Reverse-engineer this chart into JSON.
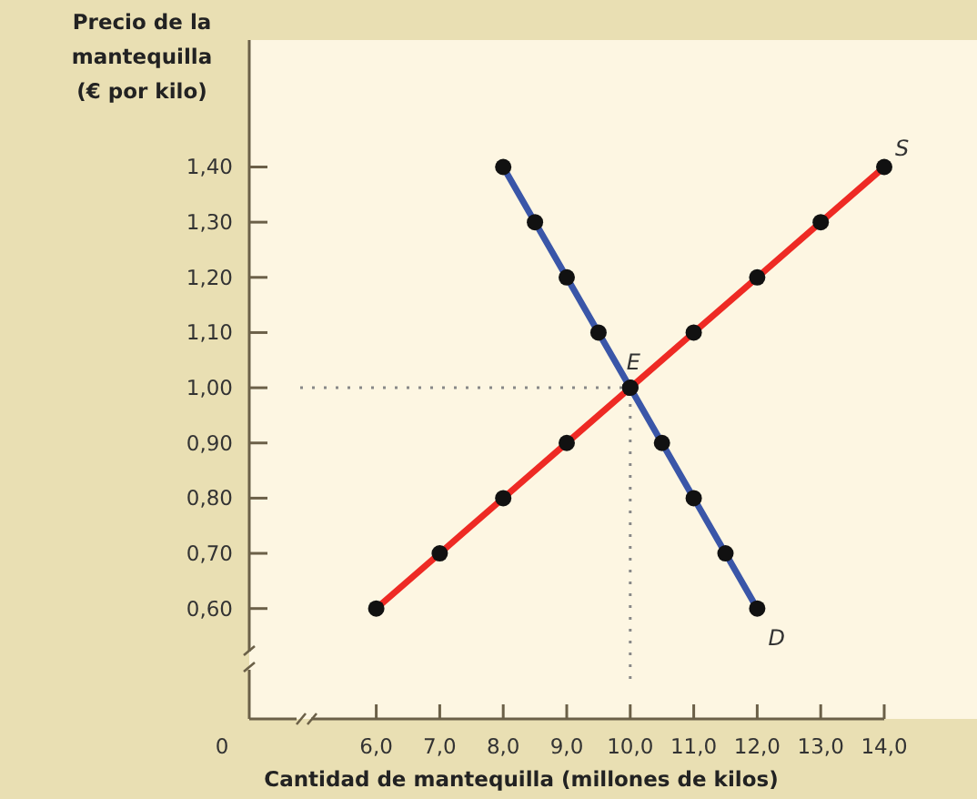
{
  "chart_data": {
    "type": "line",
    "ylabel": "Precio de la\nmantequilla\n(€ por kilo)",
    "xlabel": "Cantidad de mantequilla (millones de kilos)",
    "xlim": [
      4,
      14
    ],
    "ylim": [
      0.4,
      1.63
    ],
    "xticks": [
      {
        "value": 6,
        "label": "6,0"
      },
      {
        "value": 7,
        "label": "7,0"
      },
      {
        "value": 8,
        "label": "8,0"
      },
      {
        "value": 9,
        "label": "9,0"
      },
      {
        "value": 10,
        "label": "10,0"
      },
      {
        "value": 11,
        "label": "11,0"
      },
      {
        "value": 12,
        "label": "12,0"
      },
      {
        "value": 13,
        "label": "13,0"
      },
      {
        "value": 14,
        "label": "14,0"
      }
    ],
    "yticks": [
      {
        "value": 0.6,
        "label": "0,60"
      },
      {
        "value": 0.7,
        "label": "0,70"
      },
      {
        "value": 0.8,
        "label": "0,80"
      },
      {
        "value": 0.9,
        "label": "0,90"
      },
      {
        "value": 1.0,
        "label": "1,00"
      },
      {
        "value": 1.1,
        "label": "1,10"
      },
      {
        "value": 1.2,
        "label": "1,20"
      },
      {
        "value": 1.3,
        "label": "1,30"
      },
      {
        "value": 1.4,
        "label": "1,40"
      }
    ],
    "series": [
      {
        "name": "S",
        "color": "#ee2a24",
        "x": [
          6,
          7,
          8,
          9,
          10,
          11,
          12,
          13,
          14
        ],
        "values": [
          0.6,
          0.7,
          0.8,
          0.9,
          1.0,
          1.1,
          1.2,
          1.3,
          1.4
        ]
      },
      {
        "name": "D",
        "color": "#3a56a8",
        "x": [
          8,
          8.5,
          9,
          9.5,
          10,
          10.5,
          11,
          11.5,
          12
        ],
        "values": [
          1.4,
          1.3,
          1.2,
          1.1,
          1.0,
          0.9,
          0.8,
          0.7,
          0.6
        ]
      }
    ],
    "marker": "circle",
    "grid": false,
    "legend": false,
    "annotations": [
      {
        "text": "E",
        "x": 10,
        "y": 1.0
      },
      "0"
    ],
    "ref_lines": [
      {
        "axis": "y",
        "value": 1.0,
        "line_style": "dotted",
        "color": "#888888"
      },
      {
        "axis": "x",
        "value": 10,
        "line_style": "dotted",
        "color": "#888888"
      }
    ]
  }
}
